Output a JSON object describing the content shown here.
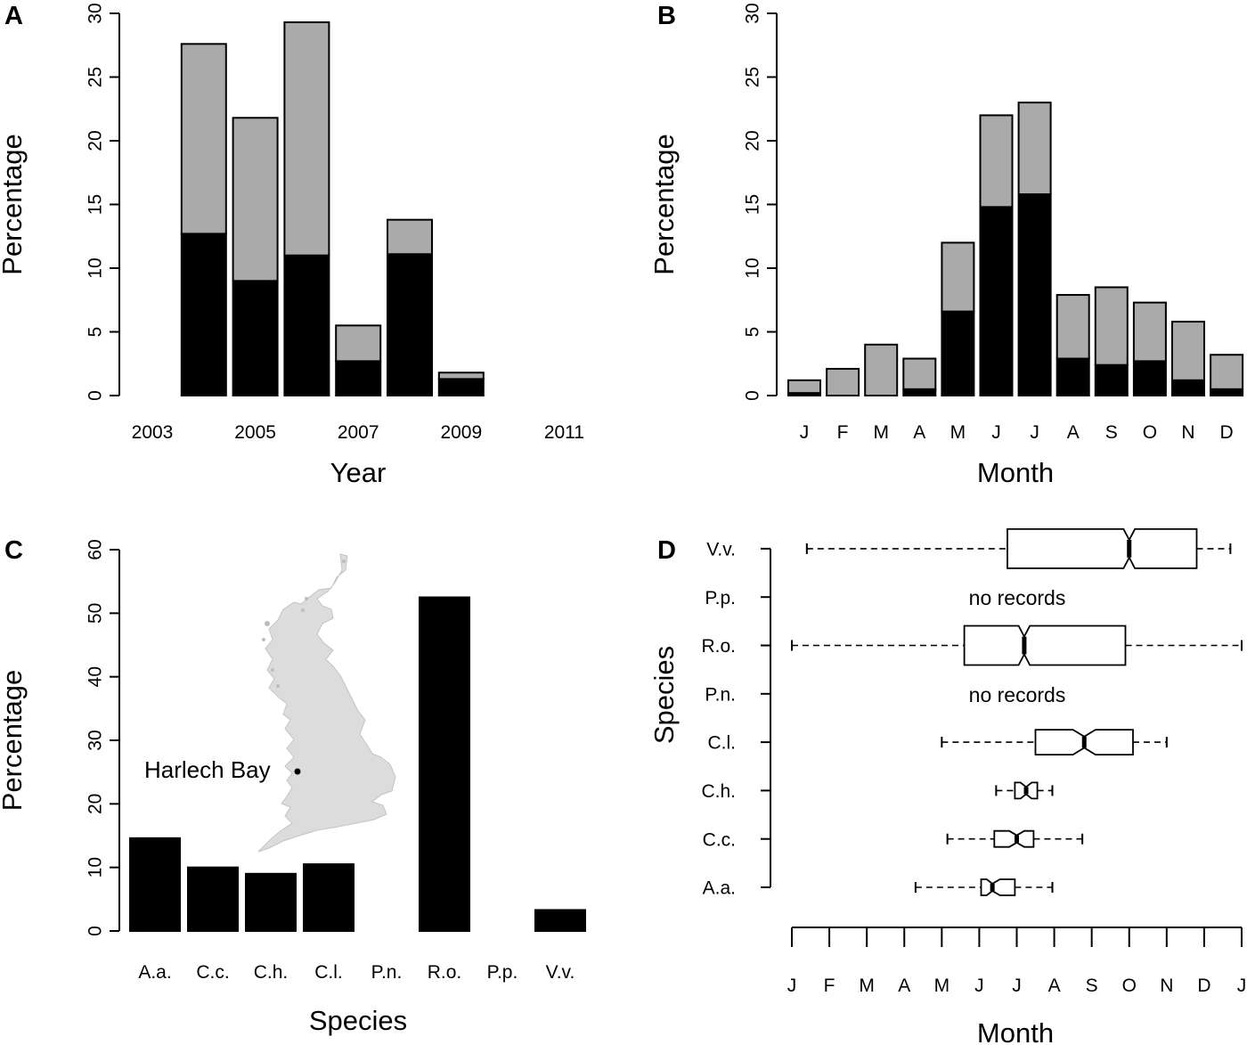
{
  "colors": {
    "dark": "#000000",
    "light": "#aaaaaa",
    "map": "#dcdcdc",
    "box_fill": "#ffffff"
  },
  "chart_data": [
    {
      "panel": "A",
      "type": "bar",
      "stacked": true,
      "categories": [
        "2003",
        "2004",
        "2005",
        "2006",
        "2007",
        "2008",
        "2009",
        "2010",
        "2011"
      ],
      "tick_labels": [
        "2003",
        "",
        "2005",
        "",
        "2007",
        "",
        "2009",
        "",
        "2011"
      ],
      "series": [
        {
          "name": "black",
          "values": [
            0,
            12.7,
            9.0,
            11.0,
            2.7,
            11.1,
            1.3,
            0,
            0
          ]
        },
        {
          "name": "grey",
          "values": [
            0,
            14.9,
            12.8,
            18.3,
            2.8,
            2.7,
            0.5,
            0,
            0
          ]
        }
      ],
      "xlabel": "Year",
      "ylabel": "Percentage",
      "ylim": [
        0,
        30
      ],
      "yticks": [
        "0",
        "5",
        "10",
        "15",
        "20",
        "25",
        "30"
      ]
    },
    {
      "panel": "B",
      "type": "bar",
      "stacked": true,
      "categories": [
        "J",
        "F",
        "M",
        "A",
        "M",
        "J",
        "J",
        "A",
        "S",
        "O",
        "N",
        "D"
      ],
      "series": [
        {
          "name": "black",
          "values": [
            0.2,
            0,
            0,
            0.5,
            6.6,
            14.8,
            15.8,
            2.9,
            2.4,
            2.7,
            1.2,
            0.5
          ]
        },
        {
          "name": "grey",
          "values": [
            1.0,
            2.1,
            4.0,
            2.4,
            5.4,
            7.2,
            7.2,
            5.0,
            6.1,
            4.6,
            4.6,
            2.7
          ]
        }
      ],
      "xlabel": "Month",
      "ylabel": "Percentage",
      "ylim": [
        0,
        30
      ],
      "yticks": [
        "0",
        "5",
        "10",
        "15",
        "20",
        "25",
        "30"
      ]
    },
    {
      "panel": "C",
      "type": "bar",
      "categories": [
        "A.a.",
        "C.c.",
        "C.h.",
        "C.l.",
        "P.n.",
        "R.o.",
        "P.p.",
        "V.v."
      ],
      "values": [
        14.6,
        10.0,
        9.0,
        10.5,
        0,
        52.5,
        0,
        3.3
      ],
      "xlabel": "Species",
      "ylabel": "Percentage",
      "ylim": [
        0,
        60
      ],
      "yticks": [
        "0",
        "10",
        "20",
        "30",
        "40",
        "50",
        "60"
      ],
      "inset_label": "Harlech Bay"
    },
    {
      "panel": "D",
      "type": "boxplot",
      "orientation": "horizontal",
      "categories": [
        "A.a.",
        "C.c.",
        "C.h.",
        "C.l.",
        "P.n.",
        "R.o.",
        "P.p.",
        "V.v."
      ],
      "boxes": [
        {
          "wl": 3.3,
          "q1": 5.05,
          "med": 5.35,
          "q3": 5.95,
          "wh": 6.95,
          "nlo": 5.2,
          "nhi": 5.55
        },
        {
          "wl": 4.15,
          "q1": 5.4,
          "med": 6.0,
          "q3": 6.45,
          "wh": 7.75,
          "nlo": 5.8,
          "nhi": 6.2
        },
        {
          "wl": 5.45,
          "q1": 5.95,
          "med": 6.25,
          "q3": 6.55,
          "wh": 6.95,
          "nlo": 6.1,
          "nhi": 6.4
        },
        {
          "wl": 4.0,
          "q1": 6.5,
          "med": 7.8,
          "q3": 9.1,
          "wh": 10.0,
          "nlo": 7.5,
          "nhi": 8.1
        },
        null,
        {
          "wl": 0,
          "q1": 4.6,
          "med": 6.2,
          "q3": 8.9,
          "wh": 12,
          "nlo": 6.05,
          "nhi": 6.35
        },
        null,
        {
          "wl": 0.4,
          "q1": 5.75,
          "med": 9.0,
          "q3": 10.8,
          "wh": 11.7,
          "nlo": 8.85,
          "nhi": 9.15
        }
      ],
      "no_records_label": "no records",
      "xlabel": "Month",
      "ylabel": "Species",
      "xlim": [
        0,
        12
      ],
      "xticks": [
        "J",
        "F",
        "M",
        "A",
        "M",
        "J",
        "J",
        "A",
        "S",
        "O",
        "N",
        "D",
        "J"
      ]
    }
  ]
}
